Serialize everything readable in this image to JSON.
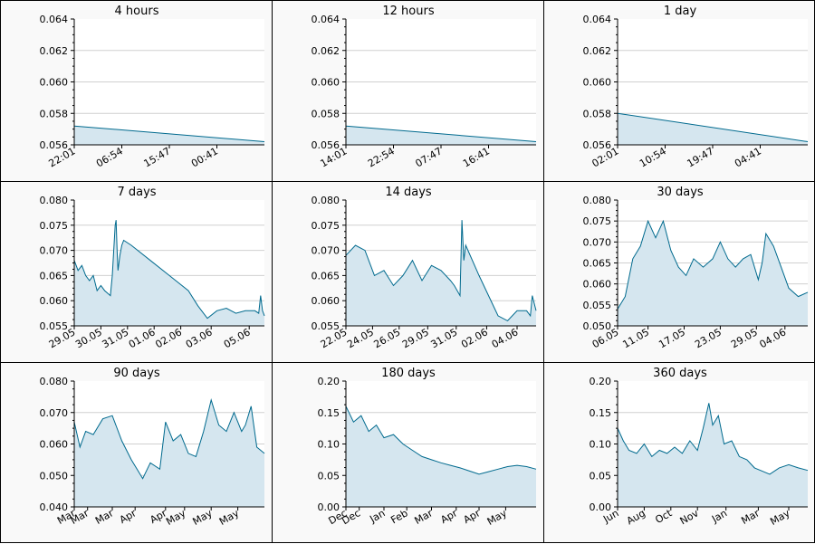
{
  "chart_data": [
    {
      "type": "area",
      "title": "4 hours",
      "ylim": [
        0.056,
        0.064
      ],
      "y_ticks": [
        "0.064",
        "0.062",
        "0.060",
        "0.058",
        "0.056"
      ],
      "x_ticks": [
        "22:01",
        "06:54",
        "15:47",
        "00:41"
      ],
      "x_tick_positions": [
        0,
        0.25,
        0.5,
        0.75
      ],
      "series": [
        {
          "x": [
            0,
            1
          ],
          "values": [
            0.0572,
            0.0562
          ]
        }
      ]
    },
    {
      "type": "area",
      "title": "12 hours",
      "ylim": [
        0.056,
        0.064
      ],
      "y_ticks": [
        "0.064",
        "0.062",
        "0.060",
        "0.058",
        "0.056"
      ],
      "x_ticks": [
        "14:01",
        "22:54",
        "07:47",
        "16:41"
      ],
      "x_tick_positions": [
        0,
        0.25,
        0.5,
        0.75
      ],
      "series": [
        {
          "x": [
            0,
            1
          ],
          "values": [
            0.0572,
            0.0562
          ]
        }
      ]
    },
    {
      "type": "area",
      "title": "1 day",
      "ylim": [
        0.056,
        0.064
      ],
      "y_ticks": [
        "0.064",
        "0.062",
        "0.060",
        "0.058",
        "0.056"
      ],
      "x_ticks": [
        "02:01",
        "10:54",
        "19:47",
        "04:41"
      ],
      "x_tick_positions": [
        0,
        0.25,
        0.5,
        0.75
      ],
      "series": [
        {
          "x": [
            0,
            1
          ],
          "values": [
            0.058,
            0.0562
          ]
        }
      ]
    },
    {
      "type": "area",
      "title": "7 days",
      "ylim": [
        0.055,
        0.08
      ],
      "y_ticks": [
        "0.080",
        "0.075",
        "0.070",
        "0.065",
        "0.060",
        "0.055"
      ],
      "x_ticks": [
        "29.05",
        "30.05",
        "31.05",
        "01.06",
        "02.06",
        "03.06",
        "05.06"
      ],
      "x_tick_positions": [
        0,
        0.14,
        0.28,
        0.42,
        0.56,
        0.72,
        0.92
      ],
      "series": [
        {
          "x": [
            0,
            0.02,
            0.04,
            0.06,
            0.08,
            0.1,
            0.12,
            0.14,
            0.16,
            0.19,
            0.2,
            0.215,
            0.22,
            0.225,
            0.23,
            0.24,
            0.25,
            0.26,
            0.3,
            0.4,
            0.5,
            0.6,
            0.65,
            0.7,
            0.75,
            0.8,
            0.85,
            0.9,
            0.95,
            0.97,
            0.98,
            0.99,
            1.0
          ],
          "values": [
            0.068,
            0.066,
            0.067,
            0.065,
            0.064,
            0.065,
            0.062,
            0.063,
            0.062,
            0.061,
            0.065,
            0.075,
            0.076,
            0.07,
            0.066,
            0.069,
            0.071,
            0.072,
            0.071,
            0.068,
            0.065,
            0.062,
            0.059,
            0.0565,
            0.058,
            0.0585,
            0.0575,
            0.058,
            0.058,
            0.0575,
            0.061,
            0.058,
            0.057
          ]
        }
      ]
    },
    {
      "type": "area",
      "title": "14 days",
      "ylim": [
        0.055,
        0.08
      ],
      "y_ticks": [
        "0.080",
        "0.075",
        "0.070",
        "0.065",
        "0.060",
        "0.055"
      ],
      "x_ticks": [
        "22.05",
        "24.05",
        "26.05",
        "29.05",
        "31.05",
        "02.06",
        "04.06"
      ],
      "x_tick_positions": [
        0,
        0.14,
        0.28,
        0.43,
        0.58,
        0.74,
        0.9
      ],
      "series": [
        {
          "x": [
            0,
            0.05,
            0.1,
            0.15,
            0.2,
            0.25,
            0.3,
            0.35,
            0.4,
            0.45,
            0.5,
            0.55,
            0.57,
            0.6,
            0.61,
            0.62,
            0.63,
            0.7,
            0.75,
            0.8,
            0.85,
            0.9,
            0.95,
            0.97,
            0.98,
            1.0
          ],
          "values": [
            0.069,
            0.071,
            0.07,
            0.065,
            0.066,
            0.063,
            0.065,
            0.068,
            0.064,
            0.067,
            0.066,
            0.064,
            0.063,
            0.061,
            0.076,
            0.068,
            0.071,
            0.065,
            0.061,
            0.057,
            0.056,
            0.058,
            0.058,
            0.057,
            0.061,
            0.058
          ]
        }
      ]
    },
    {
      "type": "area",
      "title": "30 days",
      "ylim": [
        0.05,
        0.08
      ],
      "y_ticks": [
        "0.080",
        "0.075",
        "0.070",
        "0.065",
        "0.060",
        "0.055",
        "0.050"
      ],
      "x_ticks": [
        "06.05",
        "11.05",
        "17.05",
        "23.05",
        "29.05",
        "04.06"
      ],
      "x_tick_positions": [
        0,
        0.16,
        0.35,
        0.54,
        0.73,
        0.88
      ],
      "series": [
        {
          "x": [
            0,
            0.04,
            0.08,
            0.12,
            0.16,
            0.2,
            0.24,
            0.28,
            0.32,
            0.36,
            0.4,
            0.45,
            0.5,
            0.54,
            0.58,
            0.62,
            0.66,
            0.7,
            0.74,
            0.76,
            0.78,
            0.82,
            0.86,
            0.9,
            0.95,
            1.0
          ],
          "values": [
            0.054,
            0.057,
            0.066,
            0.069,
            0.075,
            0.071,
            0.075,
            0.068,
            0.064,
            0.062,
            0.066,
            0.064,
            0.066,
            0.07,
            0.066,
            0.064,
            0.066,
            0.067,
            0.061,
            0.065,
            0.072,
            0.069,
            0.064,
            0.059,
            0.057,
            0.058
          ]
        }
      ]
    },
    {
      "type": "area",
      "title": "90 days",
      "ylim": [
        0.04,
        0.08
      ],
      "y_ticks": [
        "0.080",
        "0.070",
        "0.060",
        "0.050",
        "0.040"
      ],
      "x_ticks": [
        "Mar",
        "Mar",
        "Mar",
        "Apr",
        "Apr",
        "May",
        "May",
        "May"
      ],
      "x_tick_positions": [
        0,
        0.07,
        0.2,
        0.32,
        0.48,
        0.58,
        0.72,
        0.86
      ],
      "series": [
        {
          "x": [
            0,
            0.03,
            0.06,
            0.1,
            0.15,
            0.2,
            0.25,
            0.3,
            0.33,
            0.36,
            0.4,
            0.45,
            0.48,
            0.52,
            0.56,
            0.6,
            0.64,
            0.68,
            0.72,
            0.76,
            0.8,
            0.84,
            0.88,
            0.9,
            0.93,
            0.96,
            1.0
          ],
          "values": [
            0.067,
            0.059,
            0.064,
            0.063,
            0.068,
            0.069,
            0.061,
            0.055,
            0.052,
            0.049,
            0.054,
            0.052,
            0.067,
            0.061,
            0.063,
            0.057,
            0.056,
            0.064,
            0.074,
            0.066,
            0.064,
            0.07,
            0.064,
            0.066,
            0.072,
            0.059,
            0.057
          ]
        }
      ]
    },
    {
      "type": "area",
      "title": "180 days",
      "ylim": [
        0.0,
        0.2
      ],
      "y_ticks": [
        "0.20",
        "0.15",
        "0.10",
        "0.05",
        "0.00"
      ],
      "x_ticks": [
        "Dec",
        "Dec",
        "Jan",
        "Feb",
        "Mar",
        "Apr",
        "Apr",
        "May"
      ],
      "x_tick_positions": [
        0,
        0.07,
        0.2,
        0.32,
        0.45,
        0.58,
        0.7,
        0.84
      ],
      "series": [
        {
          "x": [
            0,
            0.04,
            0.08,
            0.12,
            0.16,
            0.2,
            0.25,
            0.3,
            0.35,
            0.4,
            0.45,
            0.5,
            0.55,
            0.6,
            0.65,
            0.7,
            0.75,
            0.8,
            0.85,
            0.9,
            0.95,
            1.0
          ],
          "values": [
            0.16,
            0.135,
            0.145,
            0.12,
            0.13,
            0.11,
            0.115,
            0.1,
            0.09,
            0.08,
            0.075,
            0.07,
            0.066,
            0.062,
            0.057,
            0.052,
            0.056,
            0.06,
            0.064,
            0.066,
            0.064,
            0.06
          ]
        }
      ]
    },
    {
      "type": "area",
      "title": "360 days",
      "ylim": [
        0.0,
        0.2
      ],
      "y_ticks": [
        "0.20",
        "0.15",
        "0.10",
        "0.05",
        "0.00"
      ],
      "x_ticks": [
        "Jun",
        "Aug",
        "Oct",
        "Nov",
        "Jan",
        "Mar",
        "May"
      ],
      "x_tick_positions": [
        0,
        0.14,
        0.28,
        0.42,
        0.57,
        0.74,
        0.9
      ],
      "series": [
        {
          "x": [
            0,
            0.03,
            0.06,
            0.1,
            0.14,
            0.18,
            0.22,
            0.26,
            0.3,
            0.34,
            0.38,
            0.42,
            0.45,
            0.48,
            0.5,
            0.53,
            0.56,
            0.6,
            0.64,
            0.68,
            0.72,
            0.76,
            0.8,
            0.85,
            0.9,
            0.95,
            1.0
          ],
          "values": [
            0.125,
            0.105,
            0.09,
            0.085,
            0.1,
            0.08,
            0.09,
            0.085,
            0.095,
            0.085,
            0.105,
            0.09,
            0.125,
            0.165,
            0.13,
            0.145,
            0.1,
            0.105,
            0.08,
            0.075,
            0.062,
            0.057,
            0.052,
            0.062,
            0.067,
            0.062,
            0.058
          ]
        }
      ]
    }
  ]
}
